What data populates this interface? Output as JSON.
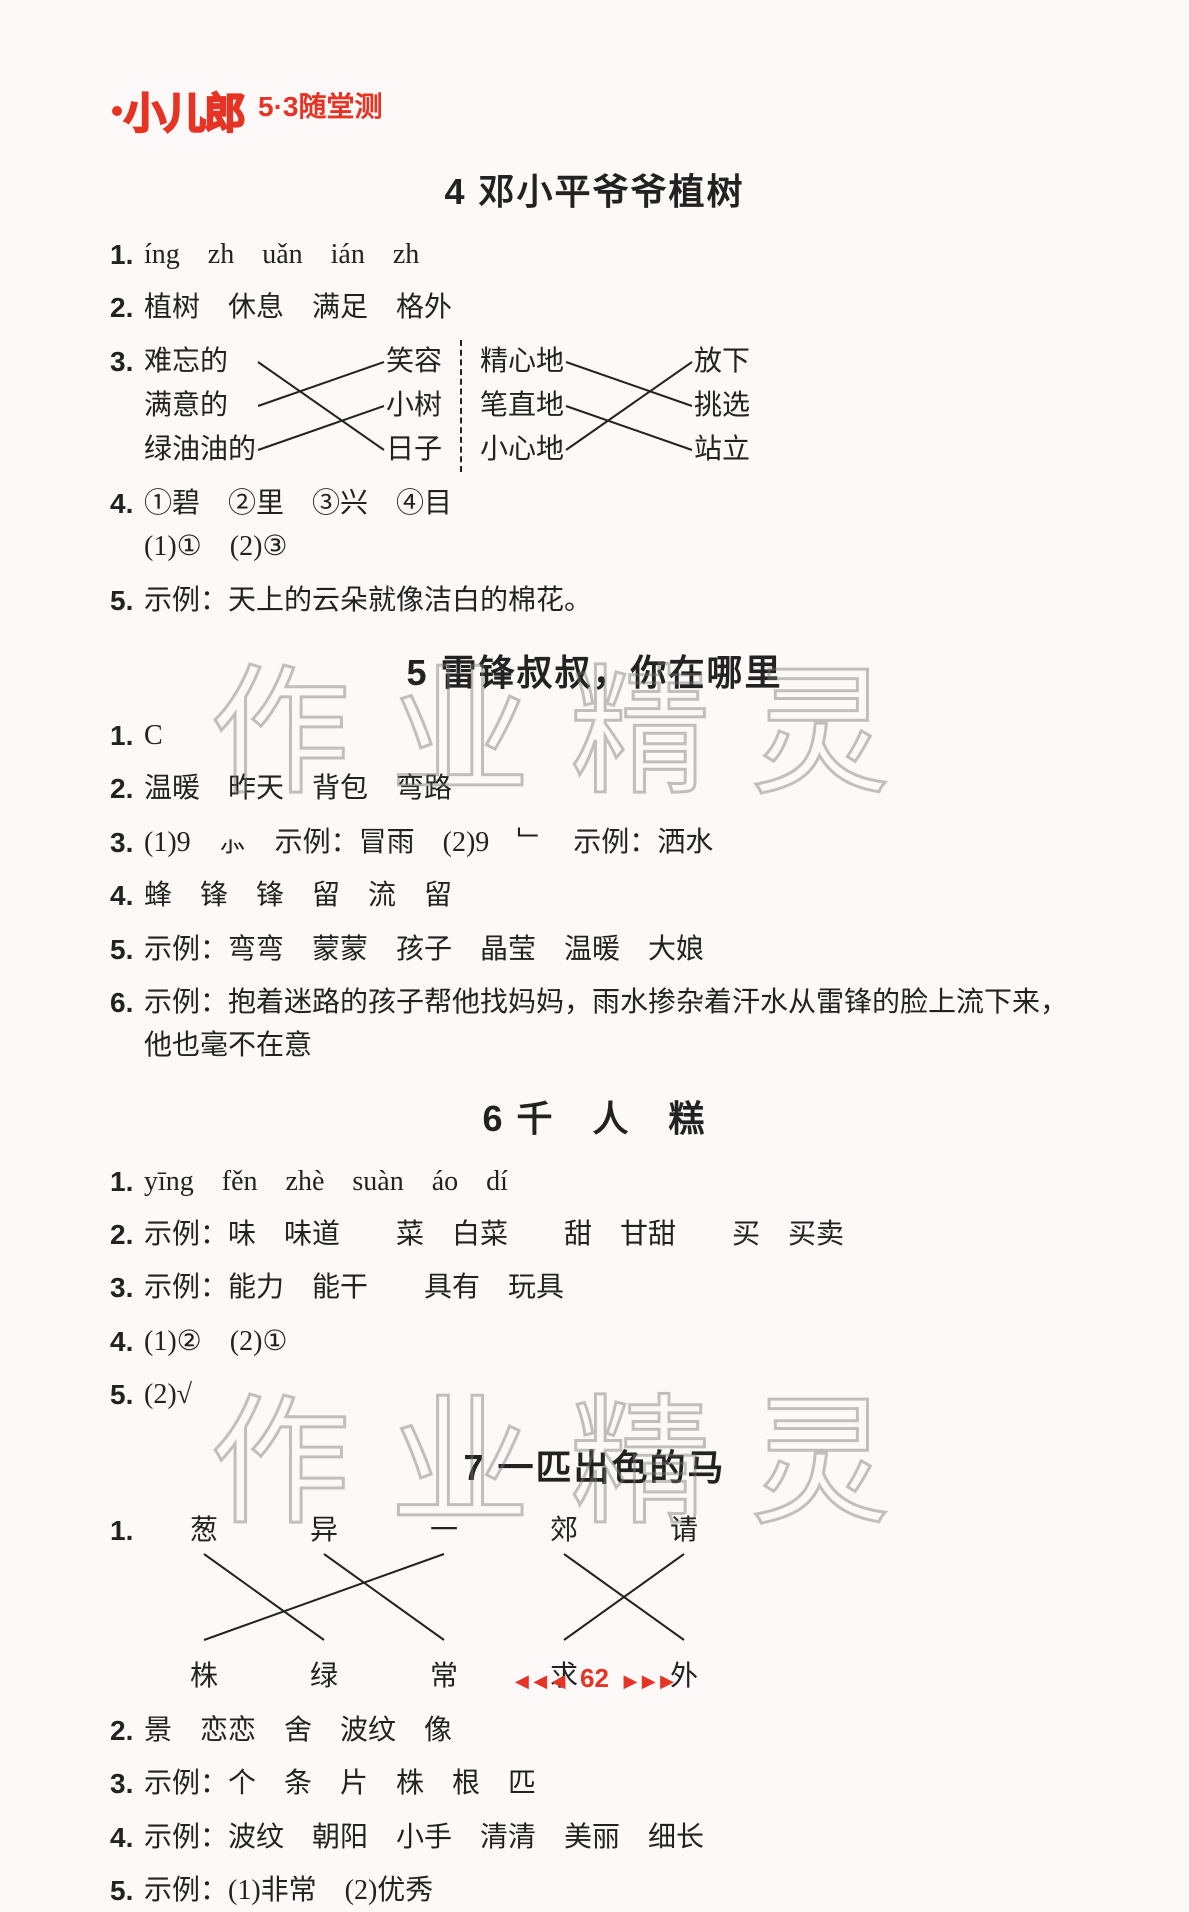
{
  "logo": "小儿郎",
  "subtitle": "5·3随堂测",
  "sections": [
    {
      "title": "4  邓小平爷爷植树",
      "items": [
        {
          "n": "1.",
          "text": "íng　zh　uǎn　ián　zh"
        },
        {
          "n": "2.",
          "text": "植树　休息　满足　格外"
        },
        {
          "n": "3.",
          "match": {
            "leftA": [
              "难忘的",
              "满意的",
              "绿油油的"
            ],
            "rightA": [
              "笑容",
              "小树",
              "日子"
            ],
            "linesA": [
              [
                0,
                2
              ],
              [
                1,
                0
              ],
              [
                2,
                1
              ]
            ],
            "leftB": [
              "精心地",
              "笔直地",
              "小心地"
            ],
            "rightB": [
              "放下",
              "挑选",
              "站立"
            ],
            "linesB": [
              [
                0,
                1
              ],
              [
                1,
                2
              ],
              [
                2,
                0
              ]
            ]
          }
        },
        {
          "n": "4.",
          "lines": [
            "①碧　②里　③兴　④目",
            "(1)①　(2)③"
          ]
        },
        {
          "n": "5.",
          "text": "示例：天上的云朵就像洁白的棉花。"
        }
      ]
    },
    {
      "title": "5  雷锋叔叔，你在哪里",
      "items": [
        {
          "n": "1.",
          "text": "C"
        },
        {
          "n": "2.",
          "text": "温暖　昨天　背包　弯路"
        },
        {
          "n": "3.",
          "text": "(1)9　⺗　示例：冒雨　(2)9　﹂　示例：洒水"
        },
        {
          "n": "4.",
          "text": "蜂　锋　锋　留　流　留"
        },
        {
          "n": "5.",
          "text": "示例：弯弯　蒙蒙　孩子　晶莹　温暖　大娘"
        },
        {
          "n": "6.",
          "text": "示例：抱着迷路的孩子帮他找妈妈，雨水掺杂着汗水从雷锋的脸上流下来，他也毫不在意"
        }
      ]
    },
    {
      "title": "6  千　人　糕",
      "items": [
        {
          "n": "1.",
          "text": "yīng　fěn　zhè　suàn　áo　dí"
        },
        {
          "n": "2.",
          "text": "示例：味　味道　　菜　白菜　　甜　甘甜　　买　买卖"
        },
        {
          "n": "3.",
          "text": "示例：能力　能干　　具有　玩具"
        },
        {
          "n": "4.",
          "text": "(1)②　(2)①"
        },
        {
          "n": "5.",
          "text": "(2)√"
        }
      ]
    },
    {
      "title": "7  一匹出色的马",
      "items": [
        {
          "n": "1.",
          "match2": {
            "top": [
              "葱",
              "异",
              "一",
              "郊",
              "请"
            ],
            "bot": [
              "株",
              "绿",
              "常",
              "求",
              "外"
            ],
            "lines": [
              [
                0,
                1
              ],
              [
                1,
                2
              ],
              [
                2,
                0
              ],
              [
                3,
                4
              ],
              [
                4,
                3
              ]
            ]
          }
        },
        {
          "n": "2.",
          "text": "景　恋恋　舍　波纹　像"
        },
        {
          "n": "3.",
          "text": "示例：个　条　片　株　根　匹"
        },
        {
          "n": "4.",
          "text": "示例：波纹　朝阳　小手　清清　美丽　细长"
        },
        {
          "n": "5.",
          "text": "示例：(1)非常　(2)优秀"
        }
      ]
    }
  ],
  "page": "62",
  "watermark": "作业精灵",
  "colors": {
    "accent": "#e63324",
    "text": "#222",
    "bg": "#fdf9f8",
    "wm": "rgba(120,120,120,0.45)"
  }
}
